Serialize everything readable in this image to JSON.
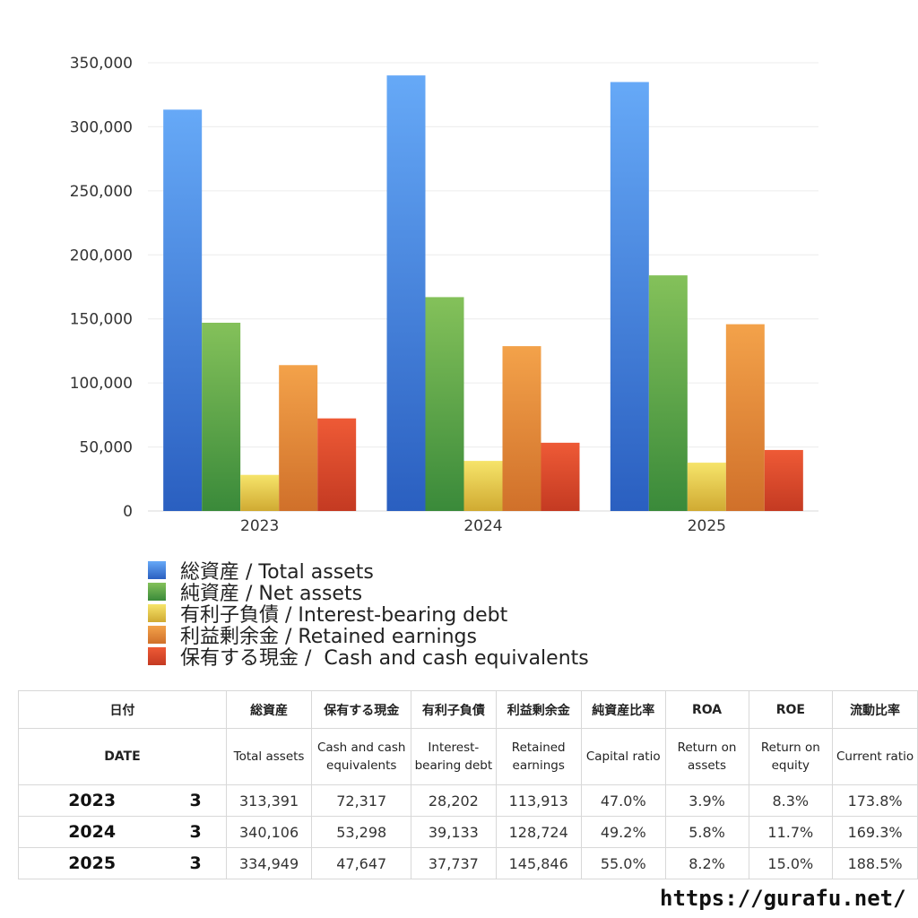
{
  "chart_data": {
    "type": "bar",
    "categories": [
      "2023",
      "2024",
      "2025"
    ],
    "ylim": [
      0,
      350000
    ],
    "yticks": [
      "0",
      "50,000",
      "100,000",
      "150,000",
      "200,000",
      "250,000",
      "300,000",
      "350,000"
    ],
    "yticks_values": [
      0,
      50000,
      100000,
      150000,
      200000,
      250000,
      300000,
      350000
    ],
    "grid": true,
    "legend_position": "bottom-left",
    "series": [
      {
        "name": "総資産 / Total assets",
        "values": [
          313391,
          340106,
          334949
        ],
        "color_top": "#66a9f7",
        "color_bottom": "#2a5fc0"
      },
      {
        "name": "純資産 / Net assets",
        "values": [
          147000,
          167000,
          184000
        ],
        "color_top": "#84c15a",
        "color_bottom": "#3a8a3a"
      },
      {
        "name": "有利子負債 / Interest-bearing debt",
        "values": [
          28202,
          39133,
          37737
        ],
        "color_top": "#f6e46a",
        "color_bottom": "#d0aa32"
      },
      {
        "name": "利益剰余金 / Retained earnings",
        "values": [
          113913,
          128724,
          145846
        ],
        "color_top": "#f3a24a",
        "color_bottom": "#d0702a"
      },
      {
        "name": "保有する現金 /  Cash and cash equivalents",
        "values": [
          72317,
          53298,
          47647
        ],
        "color_top": "#ee5a36",
        "color_bottom": "#c43a22"
      }
    ]
  },
  "table": {
    "header_jp": [
      "日付",
      "総資産",
      "保有する現金",
      "有利子負債",
      "利益剰余金",
      "純資産比率",
      "ROA",
      "ROE",
      "流動比率"
    ],
    "header_en": [
      "DATE",
      "Total assets",
      "Cash and cash equivalents",
      "Interest-bearing debt",
      "Retained earnings",
      "Capital ratio",
      "Return on assets",
      "Return on equity",
      "Current ratio"
    ],
    "rows": [
      {
        "year": "2023",
        "month": "3",
        "cells": [
          "313,391",
          "72,317",
          "28,202",
          "113,913",
          "47.0%",
          "3.9%",
          "8.3%",
          "173.8%"
        ]
      },
      {
        "year": "2024",
        "month": "3",
        "cells": [
          "340,106",
          "53,298",
          "39,133",
          "128,724",
          "49.2%",
          "5.8%",
          "11.7%",
          "169.3%"
        ]
      },
      {
        "year": "2025",
        "month": "3",
        "cells": [
          "334,949",
          "47,647",
          "37,737",
          "145,846",
          "55.0%",
          "8.2%",
          "15.0%",
          "188.5%"
        ]
      }
    ]
  },
  "footer": {
    "url": "https://gurafu.net/"
  }
}
